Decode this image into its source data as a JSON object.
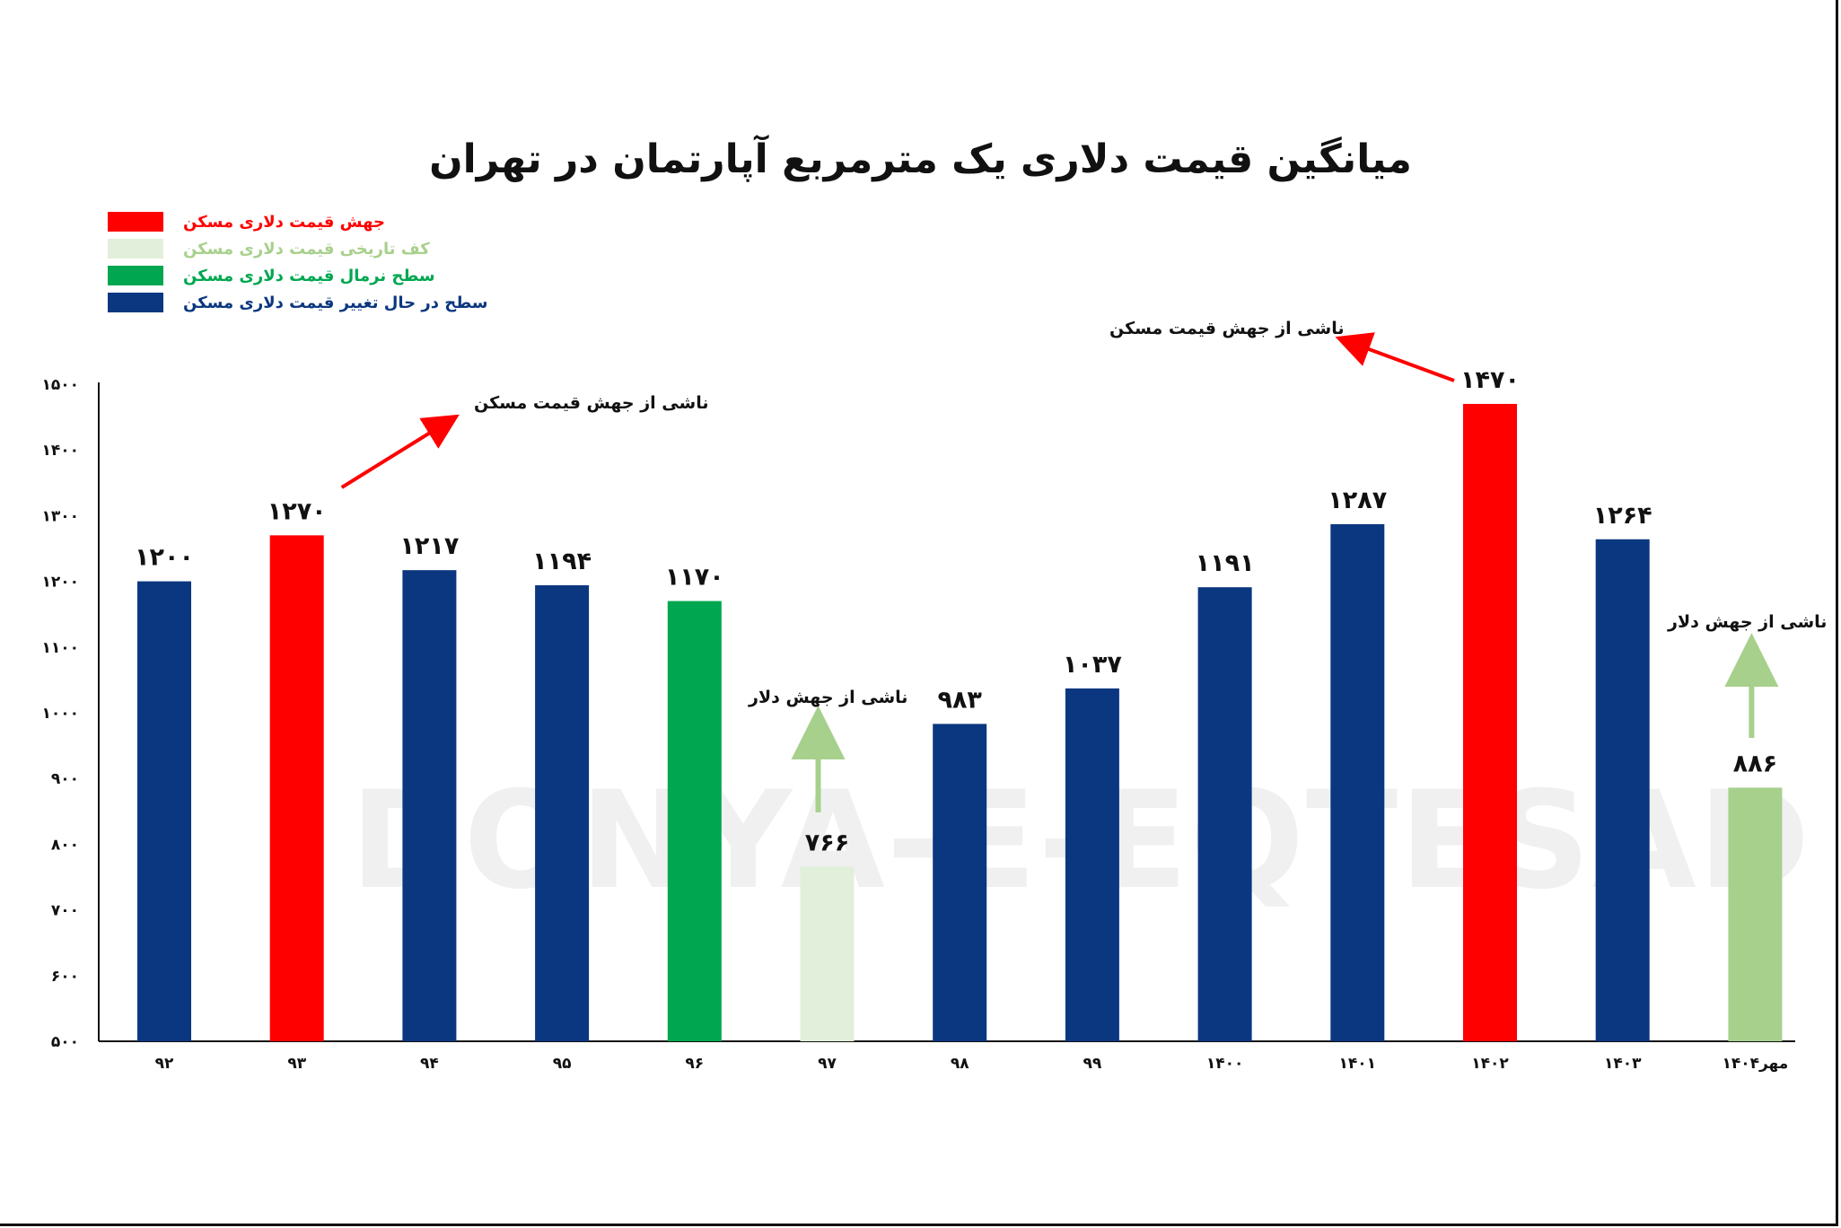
{
  "chart_data": {
    "type": "bar",
    "title": "میانگین قیمت دلاری یک مترمربع آپارتمان در تهران",
    "categories": [
      "۹۲",
      "۹۳",
      "۹۴",
      "۹۵",
      "۹۶",
      "۹۷",
      "۹۸",
      "۹۹",
      "۱۴۰۰",
      "۱۴۰۱",
      "۱۴۰۲",
      "۱۴۰۳",
      "مهر۱۴۰۴"
    ],
    "values": [
      1200,
      1270,
      1217,
      1194,
      1170,
      766,
      983,
      1037,
      1191,
      1287,
      1470,
      1264,
      886
    ],
    "value_labels": [
      "۱۲۰۰",
      "۱۲۷۰",
      "۱۲۱۷",
      "۱۱۹۴",
      "۱۱۷۰",
      "۷۶۶",
      "۹۸۳",
      "۱۰۳۷",
      "۱۱۹۱",
      "۱۲۸۷",
      "۱۴۷۰",
      "۱۲۶۴",
      "۸۸۶"
    ],
    "bar_colors": [
      "#0b3780",
      "#ff0000",
      "#0b3780",
      "#0b3780",
      "#00a650",
      "#e2efdb",
      "#0b3780",
      "#0b3780",
      "#0b3780",
      "#0b3780",
      "#ff0000",
      "#0b3780",
      "#a8d08d"
    ],
    "ylim": [
      500,
      1500
    ],
    "yticks": [
      500,
      600,
      700,
      800,
      900,
      1000,
      1100,
      1200,
      1300,
      1400,
      1500
    ],
    "ytick_labels": [
      "۵۰۰",
      "۶۰۰",
      "۷۰۰",
      "۸۰۰",
      "۹۰۰",
      "۱۰۰۰",
      "۱۱۰۰",
      "۱۲۰۰",
      "۱۳۰۰",
      "۱۴۰۰",
      "۱۵۰۰"
    ],
    "grid": false,
    "legend_position": "top-left",
    "legend": [
      {
        "label": "جهش قیمت دلاری مسکن",
        "color": "#ff0000"
      },
      {
        "label": "کف تاریخی قیمت دلاری مسکن",
        "color": "#e2efdb",
        "text_color": "#a8d08d"
      },
      {
        "label": "سطح نرمال قیمت دلاری مسکن",
        "color": "#00a650"
      },
      {
        "label": "سطح در حال تغییر قیمت دلاری مسکن",
        "color": "#0b3780"
      }
    ],
    "annotations": [
      {
        "text": "ناشی از جهش قیمت مسکن",
        "target_category": "۹۳",
        "arrow_color": "#ff0000"
      },
      {
        "text": "ناشی از جهش قیمت مسکن",
        "target_category": "۱۴۰۲",
        "arrow_color": "#ff0000"
      },
      {
        "text": "ناشی از جهش دلار",
        "target_category": "۹۷",
        "arrow_color": "#a8d08d"
      },
      {
        "text": "ناشی از جهش دلار",
        "target_category": "مهر۱۴۰۴",
        "arrow_color": "#a8d08d"
      }
    ]
  },
  "watermark": "DONYA-E-EQTESAD"
}
